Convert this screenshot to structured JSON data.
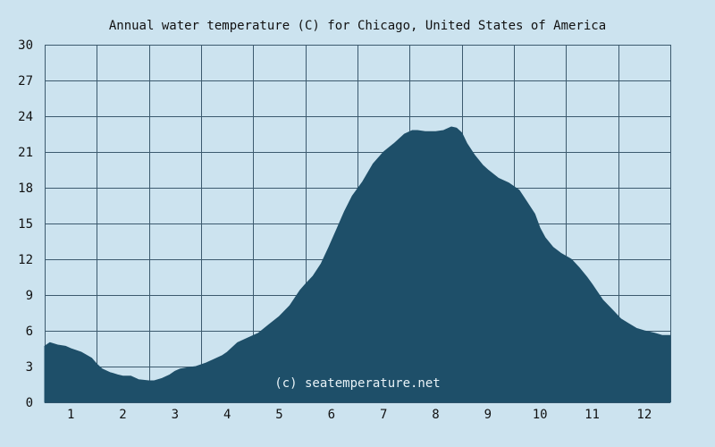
{
  "chart_data": {
    "type": "area",
    "title": "Annual water temperature (C) for Chicago, United States of America",
    "xlabel": "",
    "ylabel": "",
    "x_tick_labels": [
      "1",
      "2",
      "3",
      "4",
      "5",
      "6",
      "7",
      "8",
      "9",
      "10",
      "11",
      "12"
    ],
    "y_tick_labels": [
      "0",
      "3",
      "6",
      "9",
      "12",
      "15",
      "18",
      "21",
      "24",
      "27",
      "30"
    ],
    "ylim": [
      0,
      30
    ],
    "xlim": [
      0.5,
      12.5
    ],
    "grid": true,
    "legend": "none",
    "watermark": "(c) seatemperature.net",
    "colors": {
      "background": "#cce3ef",
      "fill": "#1e4f69",
      "grid": "#3c5a6e",
      "watermark": "#e8f2f7"
    },
    "series": [
      {
        "x": [
          0.5,
          0.6,
          0.75,
          0.9,
          1.0,
          1.2,
          1.4,
          1.5,
          1.6,
          1.75,
          1.9,
          2.0,
          2.15,
          2.3,
          2.5,
          2.6,
          2.75,
          2.9,
          3.0,
          3.1,
          3.25,
          3.4,
          3.6,
          3.75,
          3.9,
          4.0,
          4.2,
          4.4,
          4.6,
          4.8,
          5.0,
          5.2,
          5.4,
          5.5,
          5.65,
          5.8,
          5.95,
          6.1,
          6.25,
          6.4,
          6.6,
          6.8,
          7.0,
          7.2,
          7.4,
          7.55,
          7.65,
          7.8,
          8.0,
          8.15,
          8.3,
          8.4,
          8.5,
          8.6,
          8.75,
          8.9,
          9.0,
          9.2,
          9.4,
          9.6,
          9.75,
          9.9,
          10.0,
          10.1,
          10.25,
          10.4,
          10.6,
          10.75,
          10.9,
          11.0,
          11.2,
          11.4,
          11.55,
          11.7,
          11.85,
          12.0,
          12.2,
          12.35,
          12.5
        ],
        "values": [
          4.7,
          5.0,
          4.8,
          4.7,
          4.5,
          4.2,
          3.7,
          3.2,
          2.8,
          2.5,
          2.3,
          2.2,
          2.2,
          1.9,
          1.8,
          1.8,
          2.0,
          2.3,
          2.6,
          2.8,
          2.9,
          3.0,
          3.3,
          3.6,
          3.9,
          4.2,
          5.0,
          5.4,
          5.8,
          6.5,
          7.2,
          8.1,
          9.4,
          9.9,
          10.6,
          11.6,
          13.0,
          14.5,
          16.0,
          17.3,
          18.5,
          20.0,
          21.0,
          21.7,
          22.5,
          22.8,
          22.8,
          22.7,
          22.7,
          22.8,
          23.1,
          23.0,
          22.6,
          21.7,
          20.7,
          19.9,
          19.5,
          18.8,
          18.4,
          17.8,
          16.8,
          15.8,
          14.6,
          13.8,
          13.0,
          12.5,
          12.0,
          11.3,
          10.5,
          9.9,
          8.6,
          7.7,
          7.0,
          6.6,
          6.2,
          6.0,
          5.8,
          5.6,
          5.6
        ]
      }
    ]
  }
}
